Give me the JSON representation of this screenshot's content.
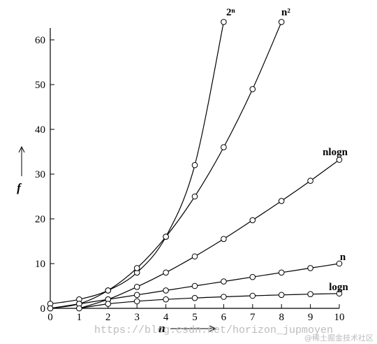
{
  "chart_data": {
    "type": "line",
    "xlabel": "n",
    "ylabel": "f",
    "xlim": [
      0,
      10
    ],
    "ylim": [
      0,
      64
    ],
    "x_ticks": [
      0,
      1,
      2,
      3,
      4,
      5,
      6,
      7,
      8,
      9,
      10
    ],
    "y_ticks": [
      0,
      10,
      20,
      30,
      40,
      50,
      60
    ],
    "grid": false,
    "legend": "none",
    "series": [
      {
        "name": "2ⁿ",
        "x": [
          0,
          1,
          2,
          3,
          4,
          5,
          6
        ],
        "y": [
          1,
          2,
          4,
          8,
          16,
          32,
          64
        ]
      },
      {
        "name": "n²",
        "x": [
          0,
          1,
          2,
          3,
          4,
          5,
          6,
          7,
          8
        ],
        "y": [
          0,
          1,
          4,
          9,
          16,
          25,
          36,
          49,
          64
        ]
      },
      {
        "name": "nlogn",
        "x": [
          1,
          2,
          3,
          4,
          5,
          6,
          7,
          8,
          9,
          10
        ],
        "y": [
          0,
          2,
          4.8,
          8,
          11.6,
          15.5,
          19.7,
          24,
          28.5,
          33.2
        ]
      },
      {
        "name": "n",
        "x": [
          0,
          1,
          2,
          3,
          4,
          5,
          6,
          7,
          8,
          9,
          10
        ],
        "y": [
          0,
          1,
          2,
          3,
          4,
          5,
          6,
          7,
          8,
          9,
          10
        ]
      },
      {
        "name": "logn",
        "x": [
          1,
          2,
          3,
          4,
          5,
          6,
          7,
          8,
          9,
          10
        ],
        "y": [
          0,
          1,
          1.58,
          2,
          2.32,
          2.58,
          2.81,
          3,
          3.17,
          3.32
        ]
      }
    ]
  },
  "watermark": {
    "url": "https://blog.csdn.net/horizon_jupmoyen",
    "site": "@稀土掘金技术社区"
  }
}
